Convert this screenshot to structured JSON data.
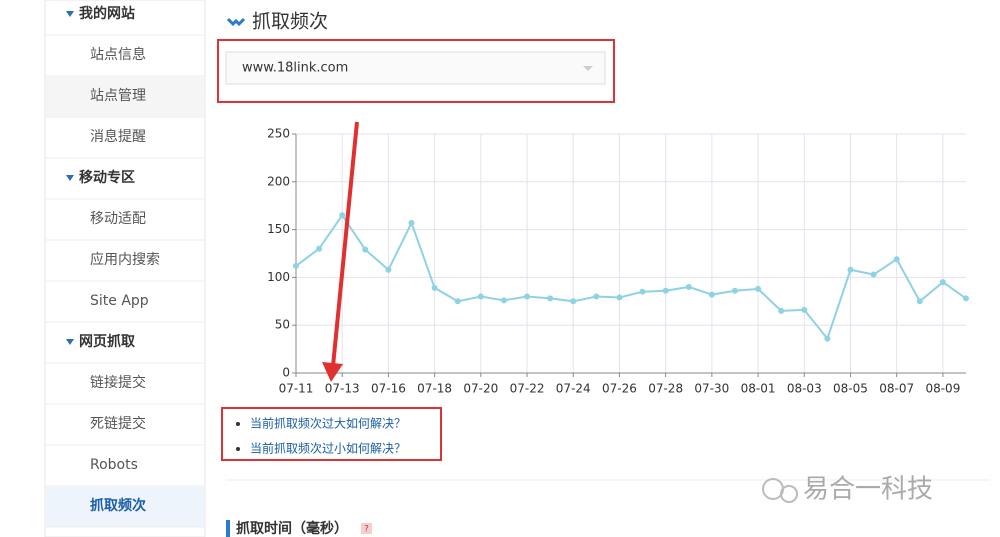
{
  "sidebar": [
    {
      "title": "我的网站",
      "items": [
        "站点信息",
        "站点管理",
        "消息提醒"
      ]
    },
    {
      "title": "移动专区",
      "items": [
        "移动适配",
        "应用内搜索",
        "Site App"
      ]
    },
    {
      "title": "网页抓取",
      "items": [
        "链接提交",
        "死链提交",
        "Robots",
        "抓取频次"
      ]
    }
  ],
  "page_title": "抓取频次",
  "site_select": "www.18link.com",
  "chart_data": {
    "type": "line",
    "color": "#8ed2e4",
    "categories": [
      "07-11",
      null,
      "07-13",
      null,
      "07-16",
      null,
      "07-18",
      null,
      "07-20",
      null,
      "07-22",
      null,
      "07-24",
      null,
      "07-26",
      null,
      "07-28",
      null,
      "07-30",
      null,
      "08-01",
      null,
      "08-03",
      null,
      "08-05",
      null,
      "08-07",
      null,
      "08-09",
      null
    ],
    "values": [
      112,
      130,
      165,
      129,
      108,
      157,
      89,
      75,
      80,
      76,
      80,
      78,
      75,
      80,
      79,
      85,
      86,
      90,
      82,
      86,
      88,
      65,
      66,
      36,
      108,
      103,
      119,
      75,
      95,
      78
    ],
    "ylim": [
      0,
      250
    ],
    "yticks": [
      0,
      50,
      100,
      150,
      200,
      250
    ],
    "grid": true
  },
  "help_links": [
    "当前抓取频次过大如何解决？",
    "当前抓取频次过小如何解决？"
  ],
  "watermark": "易合一科技",
  "section_title": "抓取时间（毫秒）",
  "help_icon": "?"
}
